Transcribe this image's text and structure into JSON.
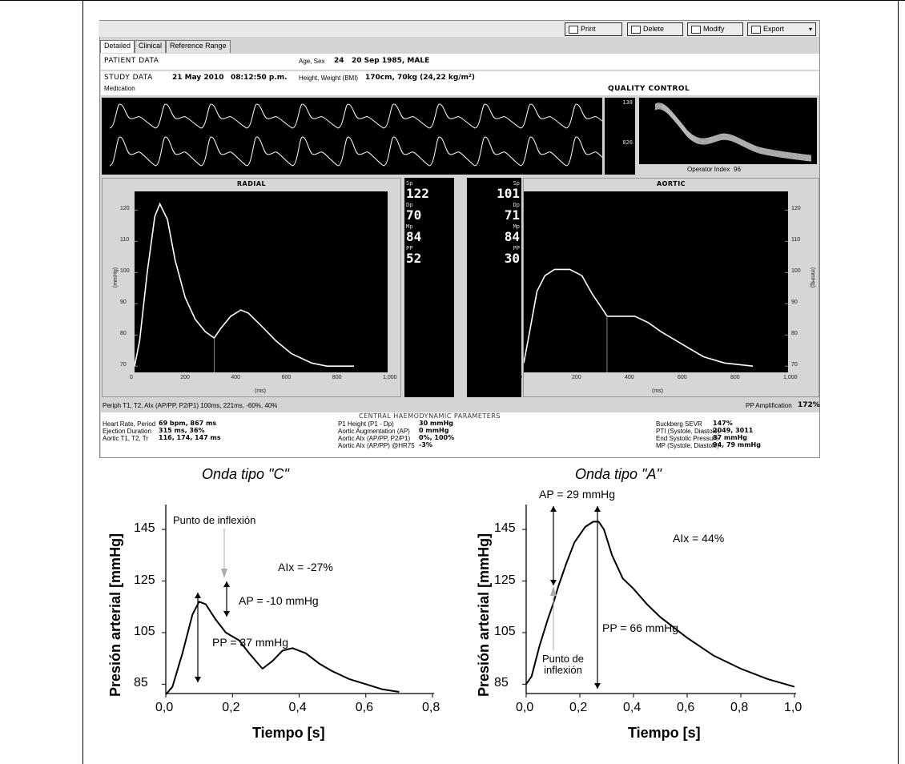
{
  "toolbar": {
    "print_label": "Print",
    "delete_label": "Delete",
    "modify_label": "Modify",
    "export_label": "Export"
  },
  "tabs": [
    "Detailed",
    "Clinical",
    "Reference Range"
  ],
  "patient": {
    "patient_label": "PATIENT DATA",
    "age_sex_label": "Age, Sex",
    "age_value": "24",
    "birth_sex_value": "20 Sep 1985, MALE",
    "study_label": "STUDY DATA",
    "study_date": "21 May 2010",
    "study_time": "08:12:50 p.m.",
    "height_weight_label": "Height, Weight (BMI)",
    "height_weight_value": "170cm, 70kg (24,22 kg/m²)",
    "medication_label": "Medication"
  },
  "quality_control": {
    "title": "QUALITY CONTROL",
    "top_value": "138",
    "bottom_value": "826",
    "operator_index_label": "Operator Index",
    "operator_index_value": "96"
  },
  "radial": {
    "title": "RADIAL",
    "y_unit": "(mmHg)",
    "x_unit": "(ms)",
    "y_ticks": [
      "120",
      "110",
      "100",
      "90",
      "80",
      "70"
    ],
    "x_ticks": [
      "0",
      "200",
      "400",
      "600",
      "800",
      "1,000"
    ]
  },
  "aortic": {
    "title": "AORTIC",
    "y_unit": "(mmHg)",
    "x_unit": "(ms)",
    "y_ticks": [
      "120",
      "110",
      "100",
      "90",
      "80",
      "70"
    ],
    "x_ticks": [
      "0",
      "200",
      "400",
      "600",
      "800",
      "1,000"
    ]
  },
  "radial_values": {
    "sp_label": "Sp",
    "sp": "122",
    "dp_label": "Dp",
    "dp": "70",
    "mp_label": "Mp",
    "mp": "84",
    "pp_label": "PP",
    "pp": "52"
  },
  "aortic_values": {
    "sp_label": "Sp",
    "sp": "101",
    "dp_label": "Dp",
    "dp": "71",
    "mp_label": "Mp",
    "mp": "84",
    "pp_label": "PP",
    "pp": "30"
  },
  "footer": {
    "periph_line": "Periph T1, T2, AIx (AP/PP, P2/P1)   100ms, 221ms, -60%, 40%",
    "pp_amp_label": "PP Amplification",
    "pp_amp_value": "172%",
    "central_title": "CENTRAL HAEMODYNAMIC PARAMETERS",
    "col1": [
      {
        "label": "Heart Rate, Period",
        "value": "69 bpm, 867 ms"
      },
      {
        "label": "Ejection Duration",
        "value": "315 ms, 36%"
      },
      {
        "label": "Aortic T1, T2, Tr",
        "value": "116, 174, 147 ms"
      }
    ],
    "col2": [
      {
        "label": "P1 Height (P1 - Dp)",
        "value": "30 mmHg"
      },
      {
        "label": "Aortic Augmentation (AP)",
        "value": "0 mmHg"
      },
      {
        "label": "Aortic AIx (AP/PP, P2/P1)",
        "value": "0%, 100%"
      },
      {
        "label": "Aortic AIx (AP/PP) @HR75",
        "value": "-3%"
      }
    ],
    "col3": [
      {
        "label": "Buckberg SEVR",
        "value": "147%"
      },
      {
        "label": "PTI (Systole, Diastole)",
        "value": "2049, 3011"
      },
      {
        "label": "End Systolic Pressure",
        "value": "87 mmHg"
      },
      {
        "label": "MP (Systole, Diastole)",
        "value": "94, 79 mmHg"
      }
    ]
  },
  "colors": {
    "screen_black": "#000000",
    "panel_gray": "#d6d6d6",
    "trace_white": "#ffffff"
  },
  "chart_data": [
    {
      "type": "line",
      "title": "Onda tipo \"C\"",
      "xlabel": "Tiempo [s]",
      "ylabel": "Presión arterial [mmHg]",
      "xlim": [
        0,
        0.8
      ],
      "ylim": [
        80,
        150
      ],
      "x_ticks": [
        "0,0",
        "0,2",
        "0,4",
        "0,6",
        "0,8"
      ],
      "y_ticks": [
        "145",
        "125",
        "105",
        "85"
      ],
      "x": [
        0.0,
        0.02,
        0.05,
        0.08,
        0.1,
        0.12,
        0.15,
        0.18,
        0.22,
        0.25,
        0.29,
        0.32,
        0.35,
        0.38,
        0.42,
        0.46,
        0.5,
        0.55,
        0.6,
        0.65,
        0.7
      ],
      "y": [
        81,
        84,
        97,
        112,
        117,
        116,
        110,
        105,
        102,
        97,
        91,
        94,
        98,
        99,
        97,
        93,
        90,
        87,
        85,
        83,
        82
      ],
      "annotations": [
        "Punto de inflexión",
        "AIx = -27%",
        "AP = -10 mmHg",
        "PP = 37 mmHg"
      ]
    },
    {
      "type": "line",
      "title": "Onda tipo \"A\"",
      "xlabel": "Tiempo [s]",
      "ylabel": "Presión arterial [mmHg]",
      "xlim": [
        0,
        1.0
      ],
      "ylim": [
        80,
        150
      ],
      "x_ticks": [
        "0,0",
        "0,2",
        "0,4",
        "0,6",
        "0,8",
        "1,0"
      ],
      "y_ticks": [
        "145",
        "125",
        "105",
        "85"
      ],
      "x": [
        0.0,
        0.02,
        0.05,
        0.08,
        0.1,
        0.12,
        0.15,
        0.18,
        0.22,
        0.25,
        0.27,
        0.29,
        0.32,
        0.36,
        0.4,
        0.45,
        0.5,
        0.6,
        0.7,
        0.8,
        0.9,
        1.0
      ],
      "y": [
        85,
        88,
        100,
        110,
        116,
        123,
        132,
        140,
        146,
        148,
        148,
        145,
        135,
        126,
        122,
        116,
        111,
        103,
        96,
        91,
        87,
        84
      ],
      "annotations": [
        "AP = 29 mmHg",
        "AIx = 44%",
        "PP = 66 mmHg",
        "Punto de inflexión"
      ]
    }
  ]
}
